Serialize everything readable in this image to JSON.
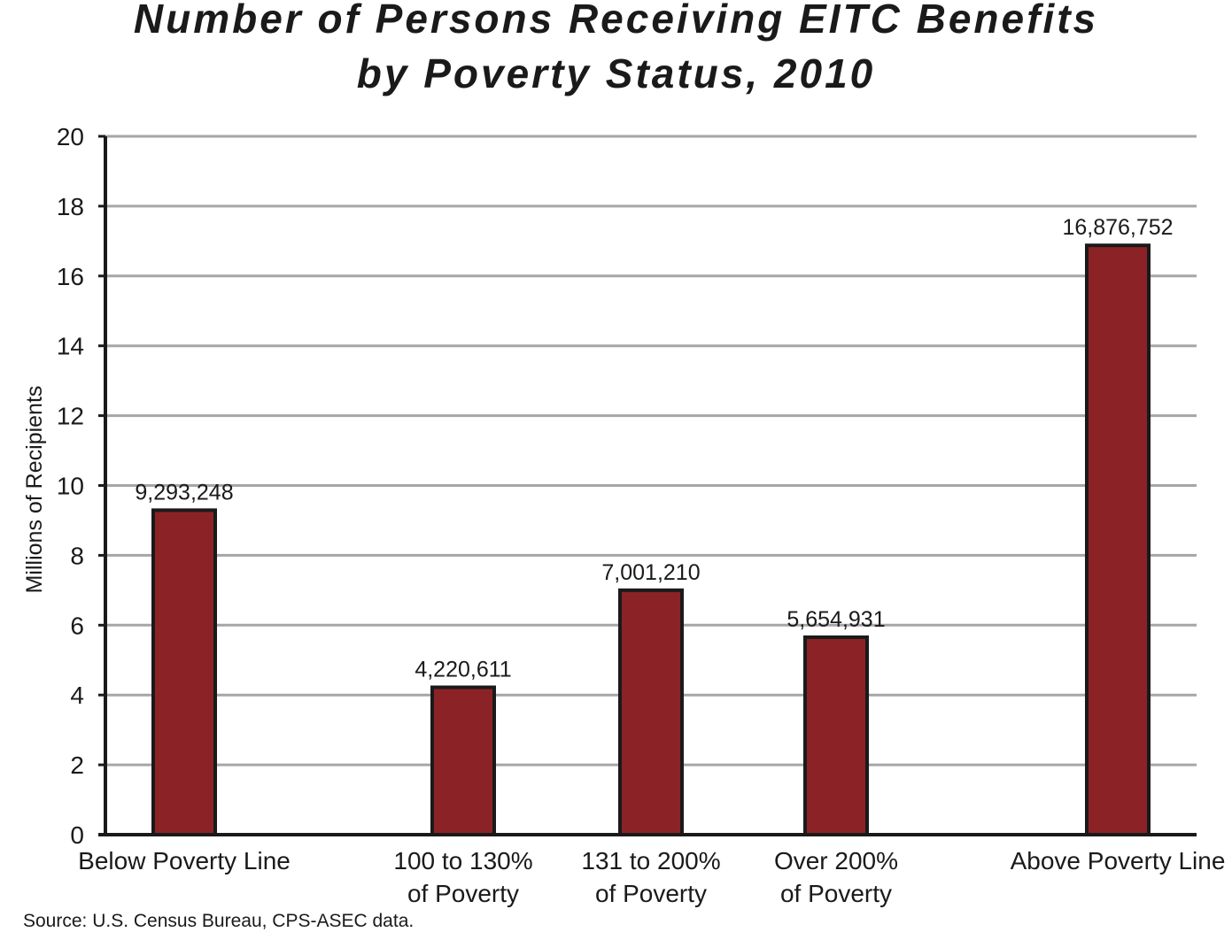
{
  "chart_data": {
    "type": "bar",
    "title_lines": [
      "Number of Persons Receiving EITC Benefits",
      "by Poverty Status, 2010"
    ],
    "ylabel": "Millions of Recipients",
    "xlabel": "",
    "ylim": [
      0,
      20
    ],
    "yticks": [
      0,
      2,
      4,
      6,
      8,
      10,
      12,
      14,
      16,
      18,
      20
    ],
    "grid": true,
    "categories": [
      [
        "Below Poverty Line"
      ],
      [
        "100 to 130%",
        "of Poverty"
      ],
      [
        "131 to 200%",
        "of Poverty"
      ],
      [
        "Over 200%",
        "of Poverty"
      ],
      [
        "Above Poverty Line"
      ]
    ],
    "values": [
      9.293248,
      4.220611,
      7.00121,
      5.654931,
      16.876752
    ],
    "value_labels": [
      "9,293,248",
      "4,220,611",
      "7,001,210",
      "5,654,931",
      "16,876,752"
    ],
    "bar_color": "#8b2326",
    "source": "Source: U.S. Census Bureau, CPS-ASEC data."
  }
}
